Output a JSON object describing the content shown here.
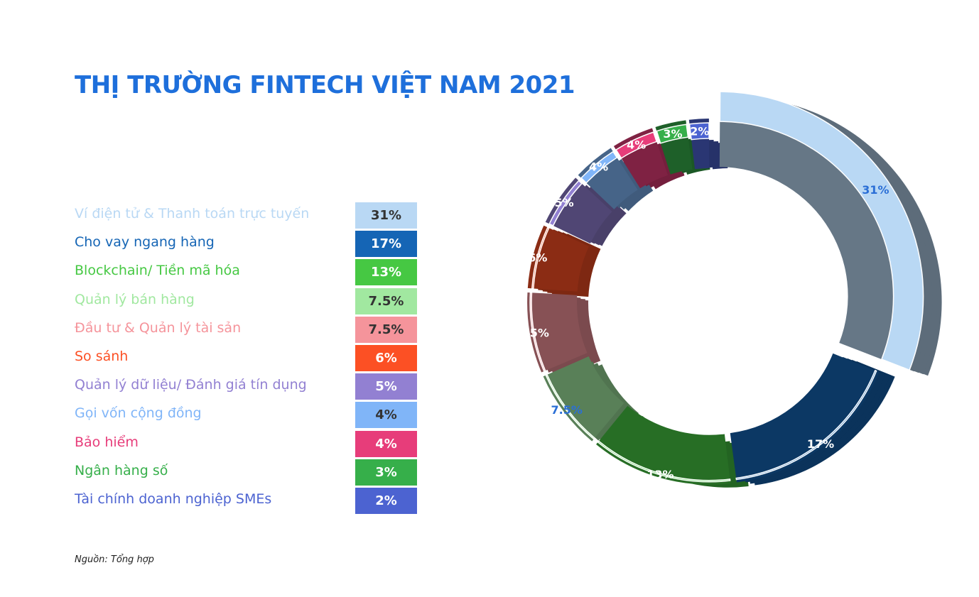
{
  "title": "THỊ TRƯỜNG FINTECH VIỆT NAM 2021",
  "source": "Nguồn: Tổng hợp",
  "chart_data": {
    "type": "pie",
    "variant": "donut-3d",
    "title": "THỊ TRƯỜNG FINTECH VIỆT NAM 2021",
    "categories": [
      "Ví điện tử & Thanh toán trực tuyến",
      "Cho vay ngang hàng",
      "Blockchain/ Tiền mã hóa",
      "Quản lý bán hàng",
      "Đầu tư & Quản lý tài sản",
      "So sánh",
      "Quản lý dữ liệu/ Đánh giá tín dụng",
      "Gọi vốn cộng đồng",
      "Bảo hiểm",
      "Ngân hàng số",
      "Tài chính doanh nghiệp SMEs"
    ],
    "values": [
      31,
      17,
      13,
      7.5,
      7.5,
      6,
      5,
      4,
      4,
      3,
      2
    ],
    "value_labels": [
      "31%",
      "17%",
      "13%",
      "7.5%",
      "7.5%",
      "6%",
      "5%",
      "4%",
      "4%",
      "3%",
      "2%"
    ],
    "colors": [
      "#B9D8F4",
      "#1565B5",
      "#46C843",
      "#A1E8A0",
      "#F5949B",
      "#FC5024",
      "#9280D2",
      "#80B5F8",
      "#E73D7A",
      "#36AF4A",
      "#4C63D1"
    ],
    "label_colors": [
      "#2B6FD6",
      "#ffffff",
      "#ffffff",
      "#2B6FD6",
      "#ffffff",
      "#ffffff",
      "#ffffff",
      "#ffffff",
      "#ffffff",
      "#ffffff",
      "#ffffff"
    ],
    "legend_text_colors": [
      "#B9D8F4",
      "#1565B5",
      "#46C843",
      "#A1E8A0",
      "#F5949B",
      "#FC5024",
      "#9280D2",
      "#80B5F8",
      "#E73D7A",
      "#36AF4A",
      "#4C63D1"
    ],
    "badge_text_colors": [
      "#333333",
      "#ffffff",
      "#ffffff",
      "#333333",
      "#333333",
      "#ffffff",
      "#ffffff",
      "#333333",
      "#ffffff",
      "#ffffff",
      "#ffffff"
    ],
    "legend_placement": "left"
  }
}
